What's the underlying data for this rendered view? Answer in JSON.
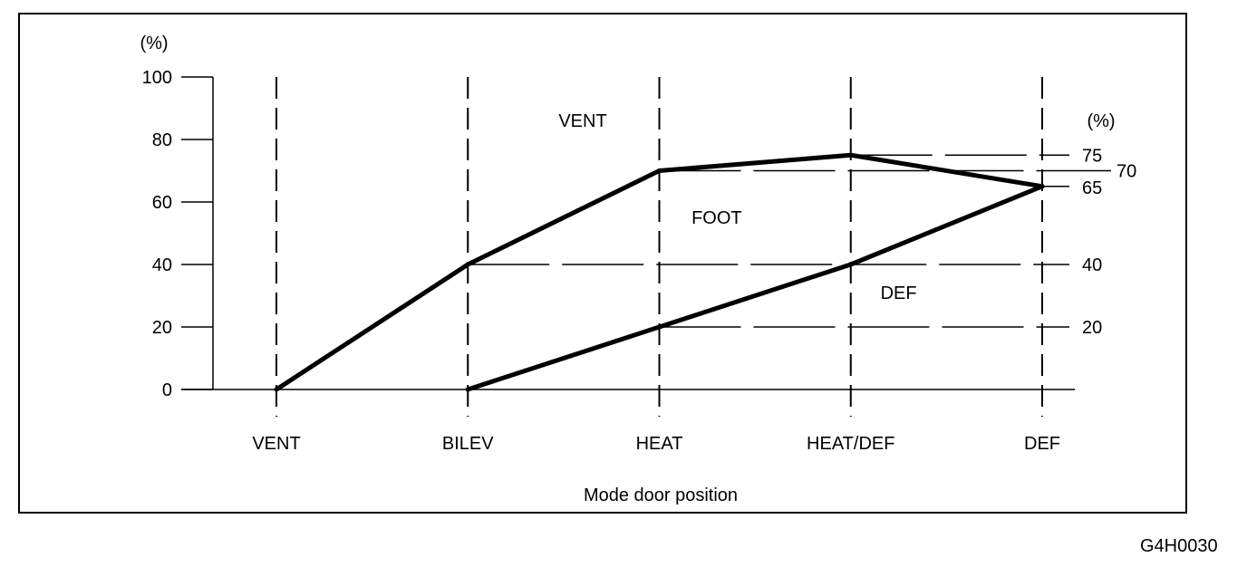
{
  "figure_id": "G4H0030",
  "chart_data": {
    "type": "line",
    "xlabel": "Mode door position",
    "ylabel": "(%)",
    "right_axis_label": "(%)",
    "ylim": [
      0,
      100
    ],
    "y_ticks": [
      "0",
      "20",
      "40",
      "60",
      "80",
      "100"
    ],
    "categories": [
      "VENT",
      "BILEV",
      "HEAT",
      "HEAT/DEF",
      "DEF"
    ],
    "boundaries": [
      {
        "points": [
          [
            0,
            0
          ],
          [
            1,
            40
          ],
          [
            2,
            70
          ],
          [
            3,
            75
          ],
          [
            4,
            65
          ]
        ]
      },
      {
        "points": [
          [
            1,
            0
          ],
          [
            2,
            20
          ],
          [
            3,
            40
          ],
          [
            4,
            65
          ]
        ]
      }
    ],
    "region_labels": [
      {
        "text": "VENT",
        "x": 1.6,
        "y": 84
      },
      {
        "text": "FOOT",
        "x": 2.3,
        "y": 53
      },
      {
        "text": "DEF",
        "x": 3.25,
        "y": 29
      }
    ],
    "right_values": [
      {
        "value": 75,
        "label": "75"
      },
      {
        "value": 70,
        "label": "70"
      },
      {
        "value": 65,
        "label": "65"
      },
      {
        "value": 40,
        "label": "40"
      },
      {
        "value": 20,
        "label": "20"
      }
    ],
    "grid": false,
    "legend": "none"
  }
}
